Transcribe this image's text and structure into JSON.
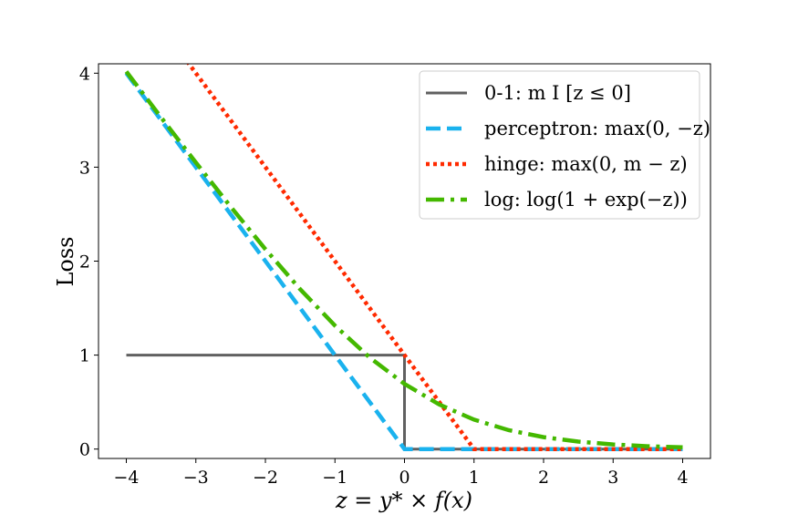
{
  "chart_data": {
    "type": "line",
    "title": "",
    "xlabel": "z = y* × f(x)",
    "ylabel": "Loss",
    "xlim": [
      -4.4,
      4.4
    ],
    "ylim": [
      -0.1,
      4.1
    ],
    "xticks": [
      -4,
      -3,
      -2,
      -1,
      0,
      1,
      2,
      3,
      4
    ],
    "xtick_labels": [
      "−4",
      "−3",
      "−2",
      "−1",
      "0",
      "1",
      "2",
      "3",
      "4"
    ],
    "yticks": [
      0,
      1,
      2,
      3,
      4
    ],
    "ytick_labels": [
      "0",
      "1",
      "2",
      "3",
      "4"
    ],
    "grid": false,
    "legend_position": "top-right",
    "series": [
      {
        "name": "0-1: m I [z ≤ 0]",
        "color": "#606060",
        "style": "solid",
        "x": [
          -4,
          0,
          0,
          4
        ],
        "y": [
          1,
          1,
          0,
          0
        ]
      },
      {
        "name": "perceptron: max(0, −z)",
        "color": "#1ab2ee",
        "style": "dashed",
        "x": [
          -4,
          0,
          4
        ],
        "y": [
          4,
          0,
          0
        ]
      },
      {
        "name": "hinge: max(0, m − z)",
        "color": "#ff2a00",
        "style": "dotted",
        "x": [
          -4,
          1,
          4
        ],
        "y": [
          5,
          0,
          0
        ]
      },
      {
        "name": "log: log(1 + exp(−z))",
        "color": "#44b800",
        "style": "dashdot",
        "x": [
          -4,
          -3.5,
          -3,
          -2.5,
          -2,
          -1.5,
          -1,
          -0.5,
          0,
          0.5,
          1,
          1.5,
          2,
          2.5,
          3,
          3.5,
          4
        ],
        "y": [
          4.018,
          3.53,
          3.049,
          2.579,
          2.127,
          1.701,
          1.313,
          0.974,
          0.693,
          0.474,
          0.313,
          0.201,
          0.127,
          0.079,
          0.049,
          0.03,
          0.018
        ]
      }
    ]
  }
}
